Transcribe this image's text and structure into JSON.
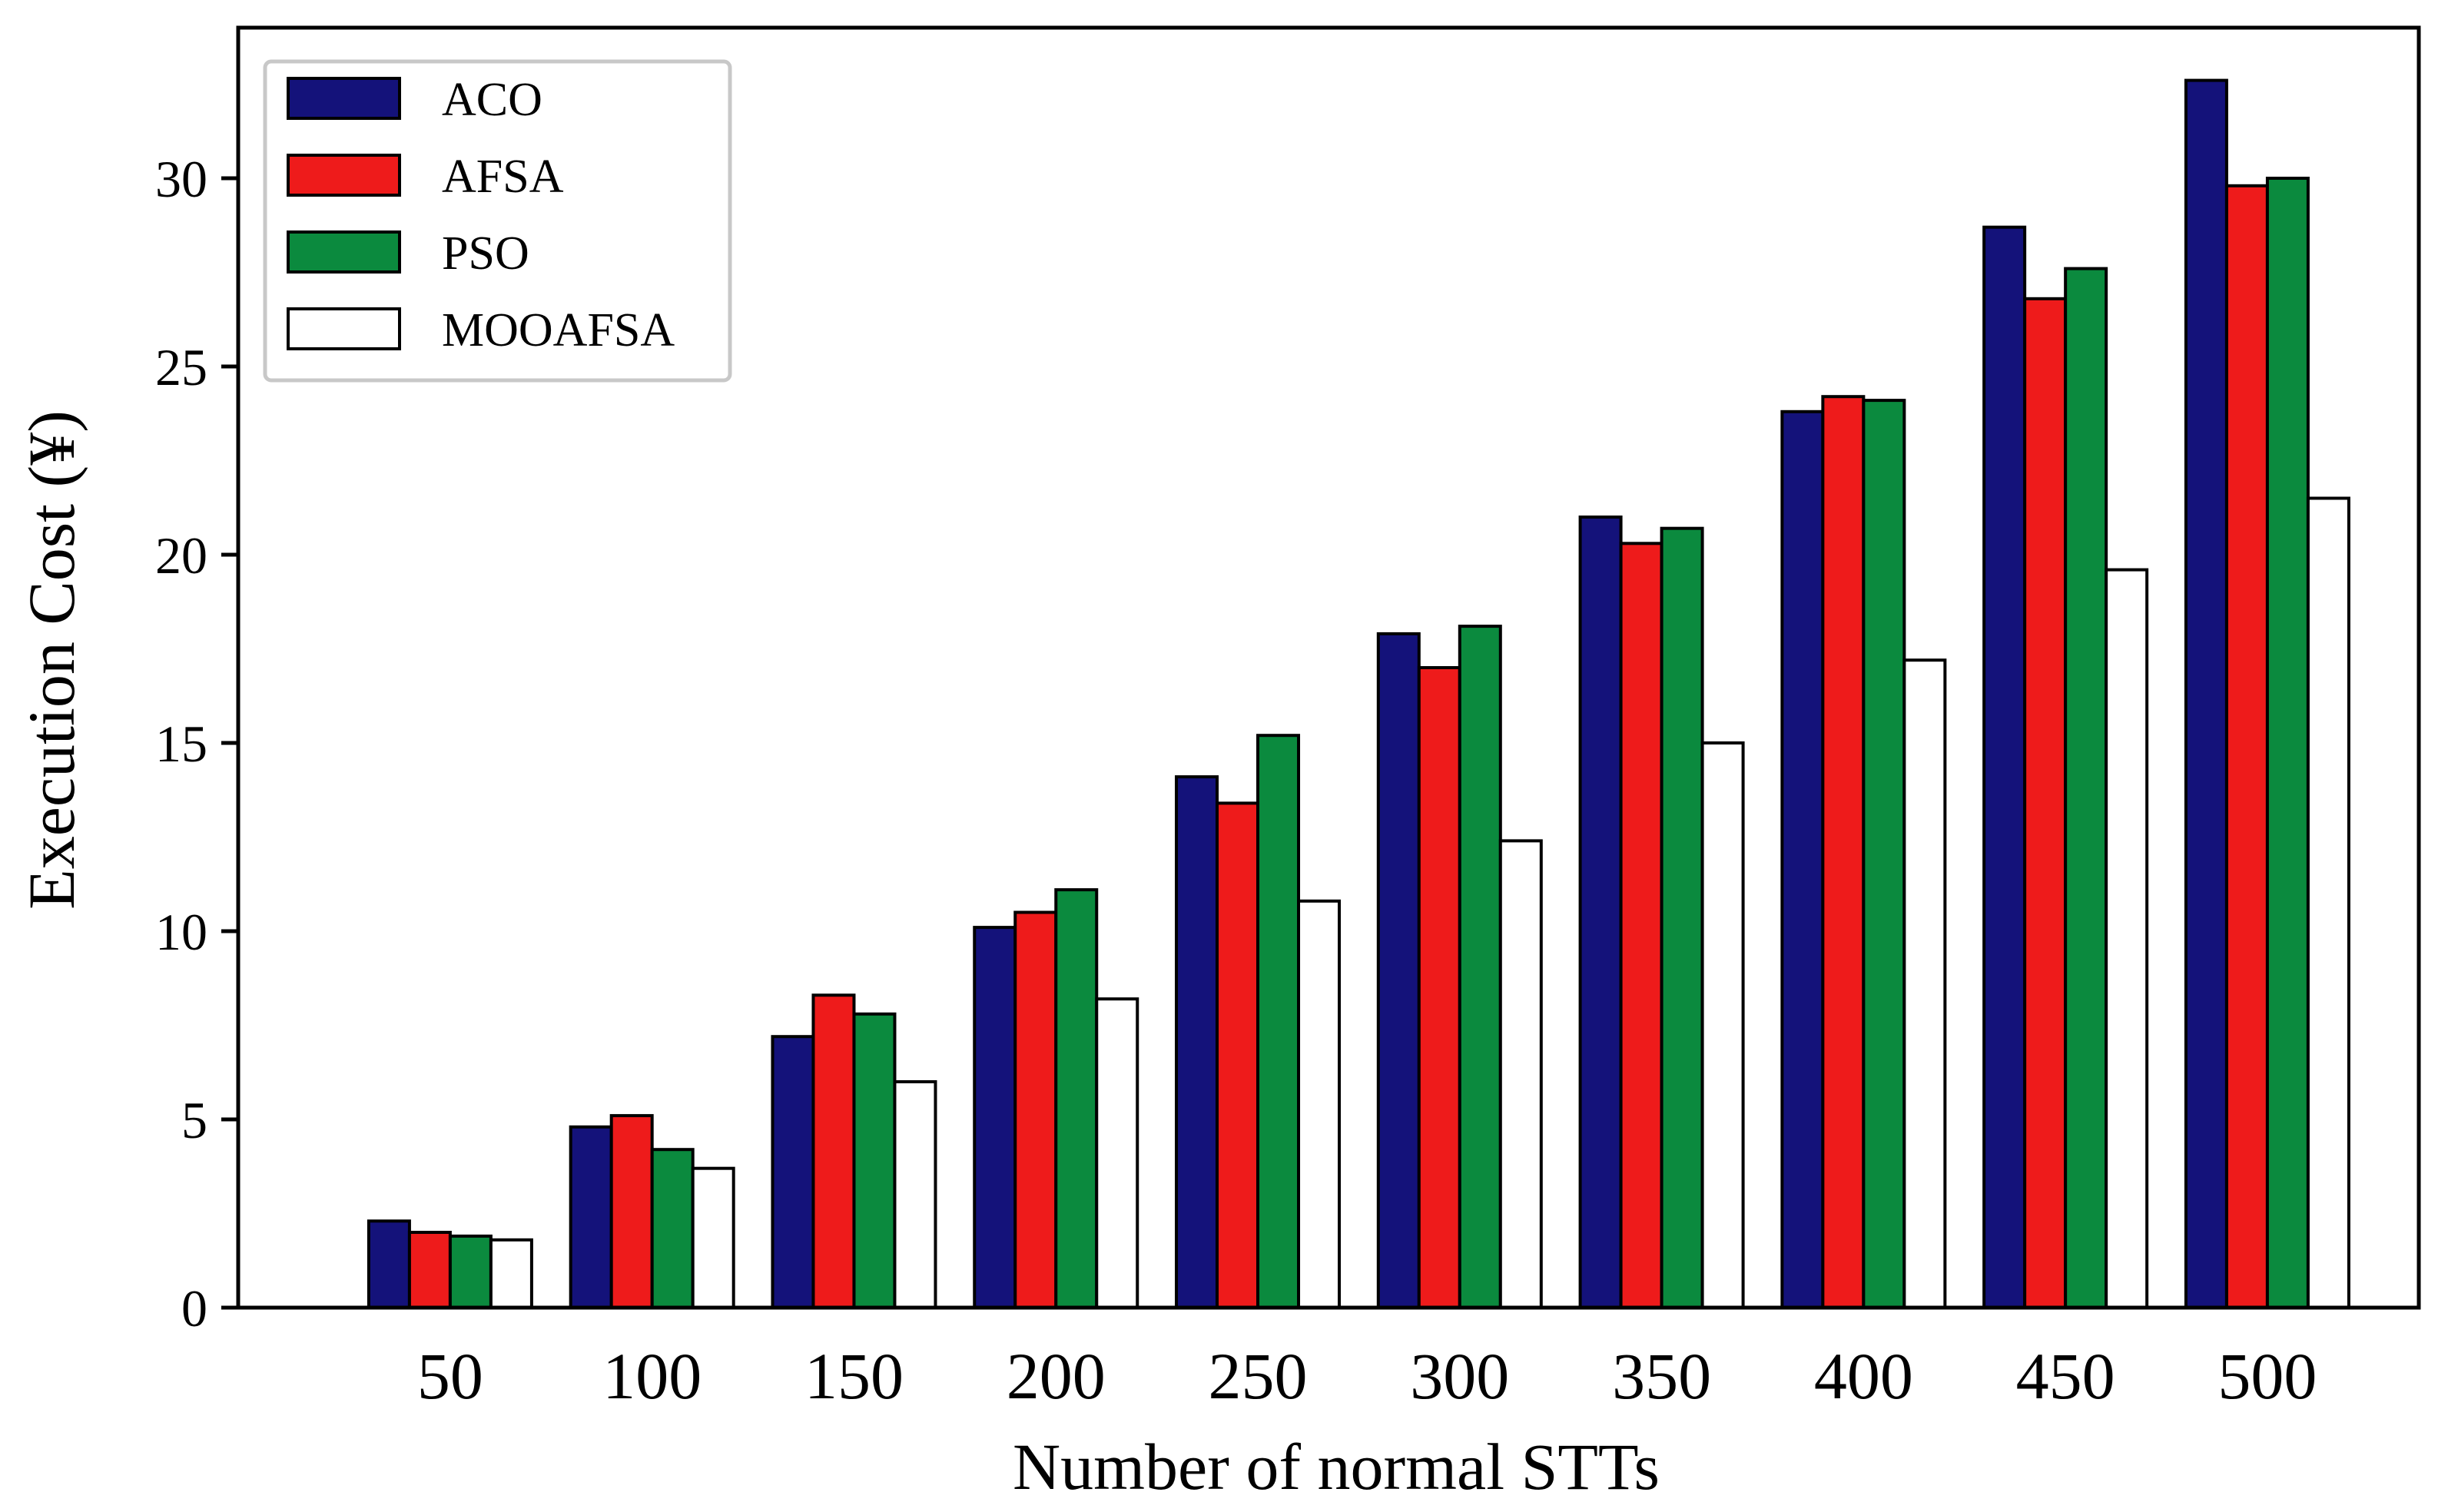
{
  "chart_data": {
    "type": "bar",
    "title": "",
    "xlabel": "Number of normal STTs",
    "ylabel": "Execution Cost (¥)",
    "categories": [
      "50",
      "100",
      "150",
      "200",
      "250",
      "300",
      "350",
      "400",
      "450",
      "500"
    ],
    "ylim": [
      0,
      34
    ],
    "yticks": [
      0,
      5,
      10,
      15,
      20,
      25,
      30
    ],
    "grid": false,
    "legend_position": "top-left",
    "series": [
      {
        "name": "ACO",
        "color": "#14127a",
        "values": [
          2.3,
          4.8,
          7.2,
          10.1,
          14.1,
          17.9,
          21.0,
          23.8,
          28.7,
          32.6
        ]
      },
      {
        "name": "AFSA",
        "color": "#ee1b1b",
        "values": [
          2.0,
          5.1,
          8.3,
          10.5,
          13.4,
          17.0,
          20.3,
          24.2,
          26.8,
          29.8
        ]
      },
      {
        "name": "PSO",
        "color": "#0b8a3e",
        "values": [
          1.9,
          4.2,
          7.8,
          11.1,
          15.2,
          18.1,
          20.7,
          24.1,
          27.6,
          30.0
        ]
      },
      {
        "name": "MOOAFSA",
        "color": "#ffffff",
        "values": [
          1.8,
          3.7,
          6.0,
          8.2,
          10.8,
          12.4,
          15.0,
          17.2,
          19.6,
          21.5
        ]
      }
    ]
  }
}
